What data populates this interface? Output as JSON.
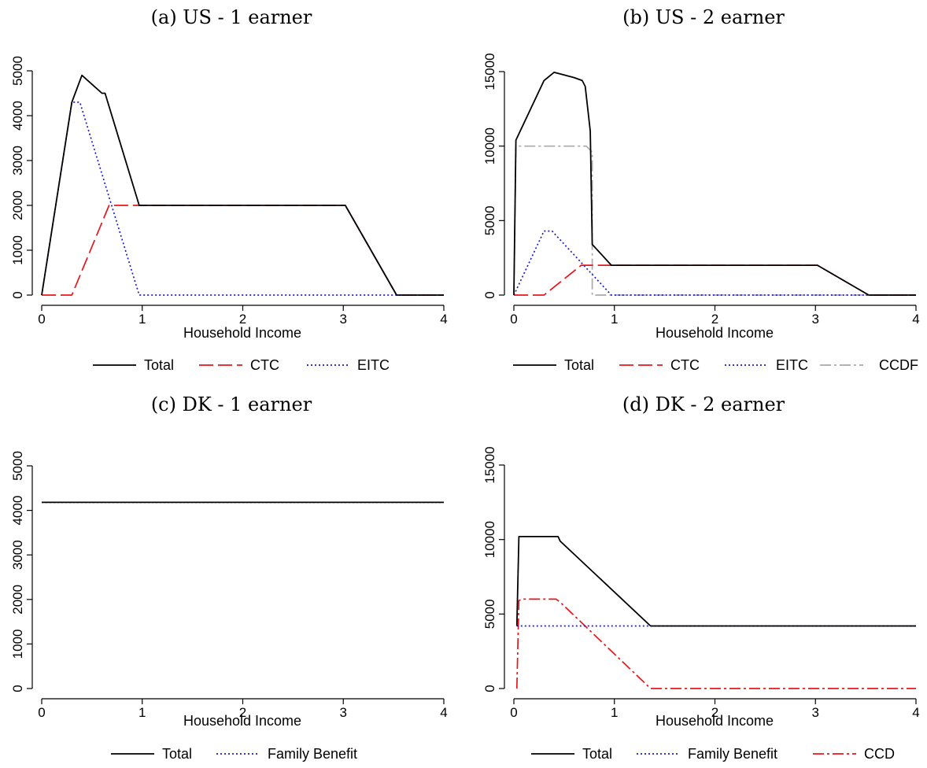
{
  "chart_data": [
    {
      "type": "line",
      "title": "(a) US - 1 earner",
      "xlabel": "Household Income",
      "ylabel": "",
      "xlim": [
        0,
        4
      ],
      "ylim": [
        0,
        5000
      ],
      "xticks": [
        "0",
        "1",
        "2",
        "3",
        "4"
      ],
      "yticks": [
        "0",
        "1000",
        "2000",
        "3000",
        "4000",
        "5000"
      ],
      "legend_position": "bottom",
      "series": [
        {
          "name": "Total",
          "color": "#000000",
          "style": "solid",
          "x": [
            0,
            0.3,
            0.4,
            0.6,
            0.63,
            0.97,
            3.02,
            3.53,
            4
          ],
          "y": [
            0,
            4300,
            4900,
            4500,
            4500,
            2000,
            2000,
            0,
            0
          ]
        },
        {
          "name": "CTC",
          "color": "#e8161b",
          "style": "longdash",
          "x": [
            0,
            0.3,
            0.67,
            3.02,
            3.53,
            4
          ],
          "y": [
            0,
            0,
            2000,
            2000,
            0,
            0
          ]
        },
        {
          "name": "EITC",
          "color": "#1a1adb",
          "style": "dot",
          "x": [
            0,
            0.3,
            0.38,
            0.97,
            4
          ],
          "y": [
            0,
            4300,
            4300,
            0,
            0
          ]
        }
      ]
    },
    {
      "type": "line",
      "title": "(b) US - 2 earner",
      "xlabel": "Household Income",
      "ylabel": "",
      "xlim": [
        0,
        4
      ],
      "ylim": [
        0,
        15000
      ],
      "xticks": [
        "0",
        "1",
        "2",
        "3",
        "4"
      ],
      "yticks": [
        "0",
        "5000",
        "10000",
        "15000"
      ],
      "legend_position": "bottom",
      "series": [
        {
          "name": "Total",
          "color": "#000000",
          "style": "solid",
          "x": [
            0,
            0.02,
            0.3,
            0.4,
            0.6,
            0.68,
            0.71,
            0.76,
            0.78,
            0.97,
            3.02,
            3.53,
            4
          ],
          "y": [
            0,
            10400,
            14400,
            14950,
            14600,
            14400,
            14000,
            11000,
            3400,
            2000,
            2000,
            0,
            0
          ]
        },
        {
          "name": "CTC",
          "color": "#e8161b",
          "style": "longdash",
          "x": [
            0,
            0.3,
            0.67,
            3.02,
            3.53,
            4
          ],
          "y": [
            0,
            0,
            2000,
            2000,
            0,
            0
          ]
        },
        {
          "name": "EITC",
          "color": "#1a1adb",
          "style": "dot",
          "x": [
            0,
            0.3,
            0.38,
            0.97,
            4
          ],
          "y": [
            0,
            4300,
            4300,
            0,
            0
          ]
        },
        {
          "name": "CCDF",
          "color": "#aaaaaa",
          "style": "dashdot",
          "x": [
            0,
            0.02,
            0.72,
            0.78,
            0.78,
            4
          ],
          "y": [
            0,
            10000,
            10000,
            9600,
            0,
            0
          ]
        }
      ]
    },
    {
      "type": "line",
      "title": "(c) DK - 1 earner",
      "xlabel": "Household Income",
      "ylabel": "",
      "xlim": [
        0,
        4
      ],
      "ylim": [
        0,
        5000
      ],
      "xticks": [
        "0",
        "1",
        "2",
        "3",
        "4"
      ],
      "yticks": [
        "0",
        "1000",
        "2000",
        "3000",
        "4000",
        "5000"
      ],
      "legend_position": "bottom",
      "series": [
        {
          "name": "Total",
          "color": "#000000",
          "style": "solid",
          "x": [
            0,
            4
          ],
          "y": [
            4180,
            4180
          ]
        },
        {
          "name": "Family Benefit",
          "color": "#1a1adb",
          "style": "dot",
          "x": [
            0,
            4
          ],
          "y": [
            4180,
            4180
          ]
        }
      ]
    },
    {
      "type": "line",
      "title": "(d) DK - 2 earner",
      "xlabel": "Household Income",
      "ylabel": "",
      "xlim": [
        0,
        4
      ],
      "ylim": [
        0,
        15000
      ],
      "xticks": [
        "0",
        "1",
        "2",
        "3",
        "4"
      ],
      "yticks": [
        "0",
        "5000",
        "10000",
        "15000"
      ],
      "legend_position": "bottom",
      "series": [
        {
          "name": "Total",
          "color": "#000000",
          "style": "solid",
          "x": [
            0.03,
            0.05,
            0.08,
            0.44,
            0.46,
            1.36,
            4
          ],
          "y": [
            4200,
            10200,
            10200,
            10200,
            9900,
            4200,
            4200
          ]
        },
        {
          "name": "Family Benefit",
          "color": "#1a1adb",
          "style": "dot",
          "x": [
            0.03,
            4
          ],
          "y": [
            4200,
            4200
          ]
        },
        {
          "name": "CCD",
          "color": "#e8161b",
          "style": "dashdot",
          "x": [
            0.03,
            0.05,
            0.08,
            0.42,
            0.46,
            1.36,
            4
          ],
          "y": [
            0,
            5900,
            6000,
            6000,
            5800,
            0,
            0
          ]
        }
      ]
    }
  ]
}
